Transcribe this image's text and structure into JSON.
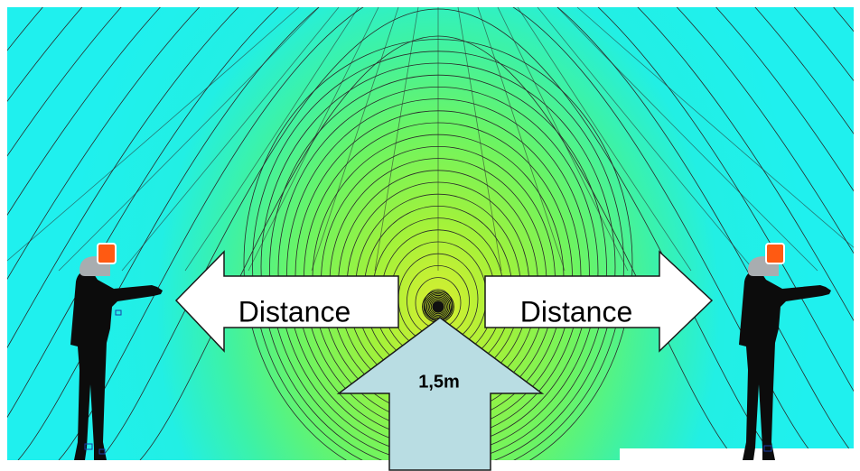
{
  "labels": {
    "left_arrow": "Distance",
    "right_arrow": "Distance",
    "up_arrow": "1,5m"
  },
  "colors": {
    "field_outer": "#1ff0ee",
    "field_mid": "#5cf57c",
    "field_inner": "#9cf23a",
    "field_core": "#d8ee30",
    "contour_line": "#2a2a2a",
    "arrow_fill": "#ffffff",
    "arrow_stroke": "#1a1a1a",
    "up_arrow_fill": "#b9dde3",
    "person_silhouette": "#0c0c0c",
    "helmet_grey": "#a8adb0",
    "helmet_orange": "#ff5a12"
  },
  "icons": {
    "left_person": "worker-pointing-icon",
    "right_person": "worker-pointing-icon",
    "helmet_device": "radiation-detector-icon"
  }
}
